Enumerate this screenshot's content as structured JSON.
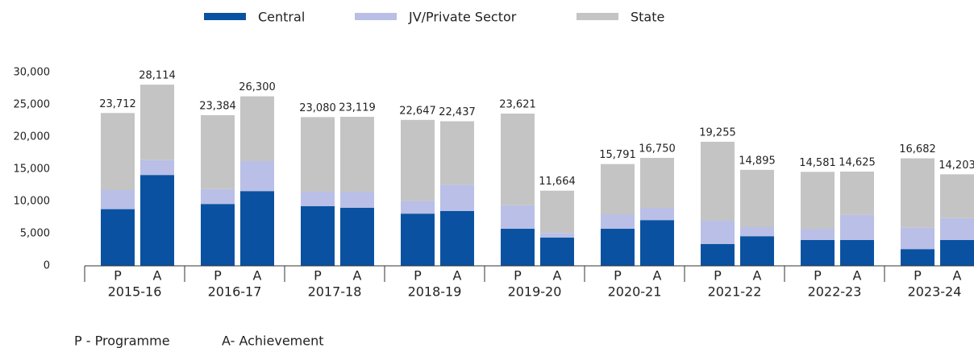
{
  "chart_data": {
    "type": "stacked_bar",
    "categories": [
      "P",
      "A",
      "P",
      "A",
      "P",
      "A",
      "P",
      "A",
      "P",
      "A",
      "P",
      "A",
      "P",
      "A",
      "P",
      "A",
      "P",
      "A"
    ],
    "groups": [
      "2015-16",
      "2016-17",
      "2017-18",
      "2018-19",
      "2019-20",
      "2020-21",
      "2021-22",
      "2022-23",
      "2023-24"
    ],
    "series": [
      {
        "name": "Central",
        "color": "#0a52a1",
        "values": [
          8800,
          14100,
          9600,
          11600,
          9250,
          9000,
          8100,
          8500,
          5750,
          4400,
          5750,
          7100,
          3400,
          4600,
          4000,
          4000,
          2600,
          4000
        ]
      },
      {
        "name": "JV/Private Sector",
        "color": "#b9bfe6",
        "values": [
          2950,
          2300,
          2300,
          4650,
          2250,
          2500,
          2000,
          4100,
          3650,
          700,
          2250,
          1900,
          3600,
          1400,
          1750,
          3900,
          3300,
          3400
        ]
      },
      {
        "name": "State",
        "color": "#c4c4c4",
        "values": [
          11962,
          11714,
          11484,
          10050,
          11580,
          11619,
          12547,
          9837,
          14221,
          6564,
          7791,
          7750,
          12255,
          8895,
          8831,
          6725,
          10782,
          6803
        ]
      }
    ],
    "totals": {
      "values": [
        23712,
        28114,
        23384,
        26300,
        23080,
        23119,
        22647,
        22437,
        23621,
        11664,
        15791,
        16750,
        19255,
        14895,
        14581,
        14625,
        16682,
        14203
      ],
      "value_labels": [
        "23,712",
        "28,114",
        "23,384",
        "26,300",
        "23,080",
        "23,119",
        "22,647",
        "22,437",
        "23,621",
        "11,664",
        "15,791",
        "16,750",
        "19,255",
        "14,895",
        "14,581",
        "14,625",
        "16,682",
        "14,203"
      ]
    },
    "ylim": [
      0,
      30000
    ],
    "yticks": [
      0,
      {
        "value": 5000,
        "label": "5,000"
      },
      {
        "value": 10000,
        "label": "10,000"
      },
      {
        "value": 15000,
        "label": "15,000"
      },
      {
        "value": 20000,
        "label": "20,000"
      },
      {
        "value": 25000,
        "label": "25,000"
      },
      {
        "value": 30000,
        "label": "30,000"
      }
    ],
    "legend": "top",
    "footnotes": [
      "P - Programme",
      "A- Achievement"
    ]
  }
}
